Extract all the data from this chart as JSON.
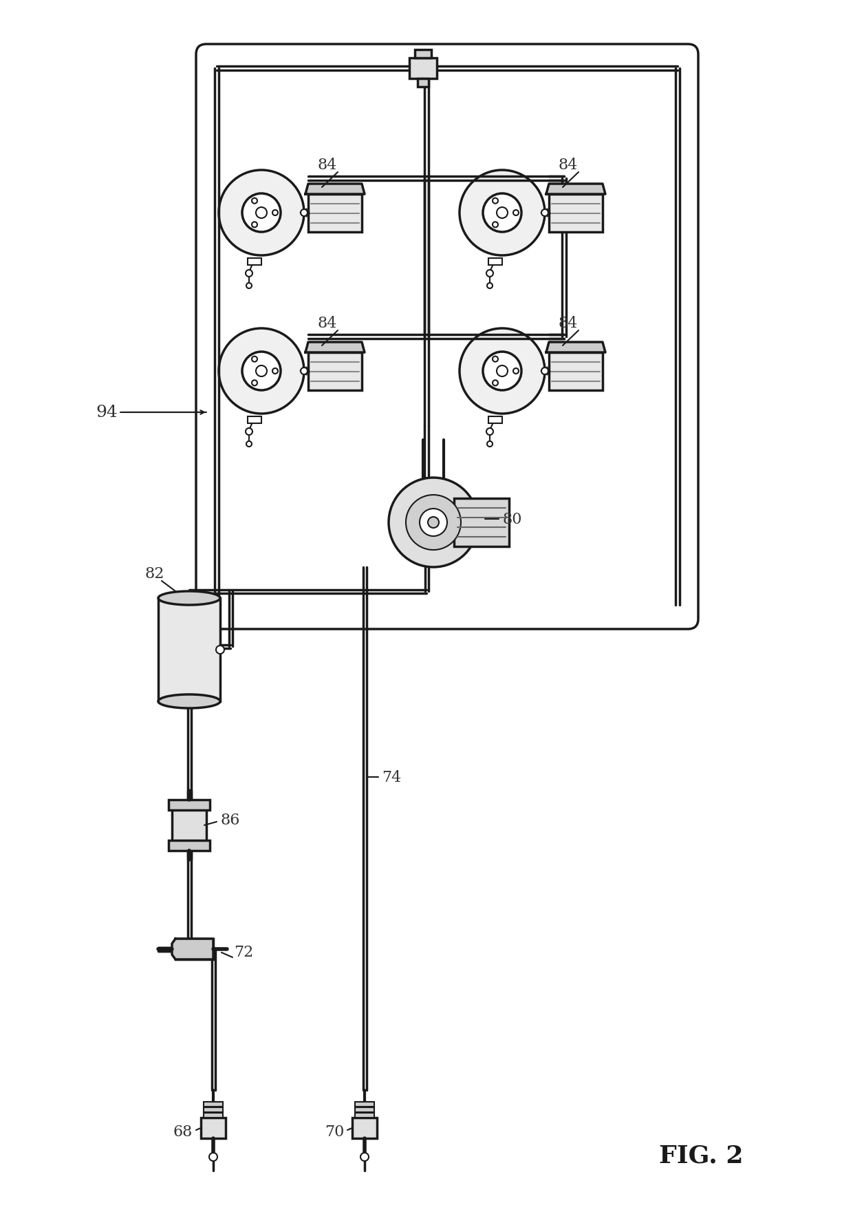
{
  "fig_label": "FIG. 2",
  "background_color": "#ffffff",
  "line_color": "#1a1a1a",
  "label_color": "#333333",
  "labels": {
    "fig": "FIG. 2",
    "main": "94",
    "ref_68": "68",
    "ref_70": "70",
    "ref_72": "72",
    "ref_74": "74",
    "ref_80": "80",
    "ref_82": "82",
    "ref_84": "84",
    "ref_86": "86"
  },
  "figsize": [
    12.4,
    17.65
  ],
  "dpi": 100
}
